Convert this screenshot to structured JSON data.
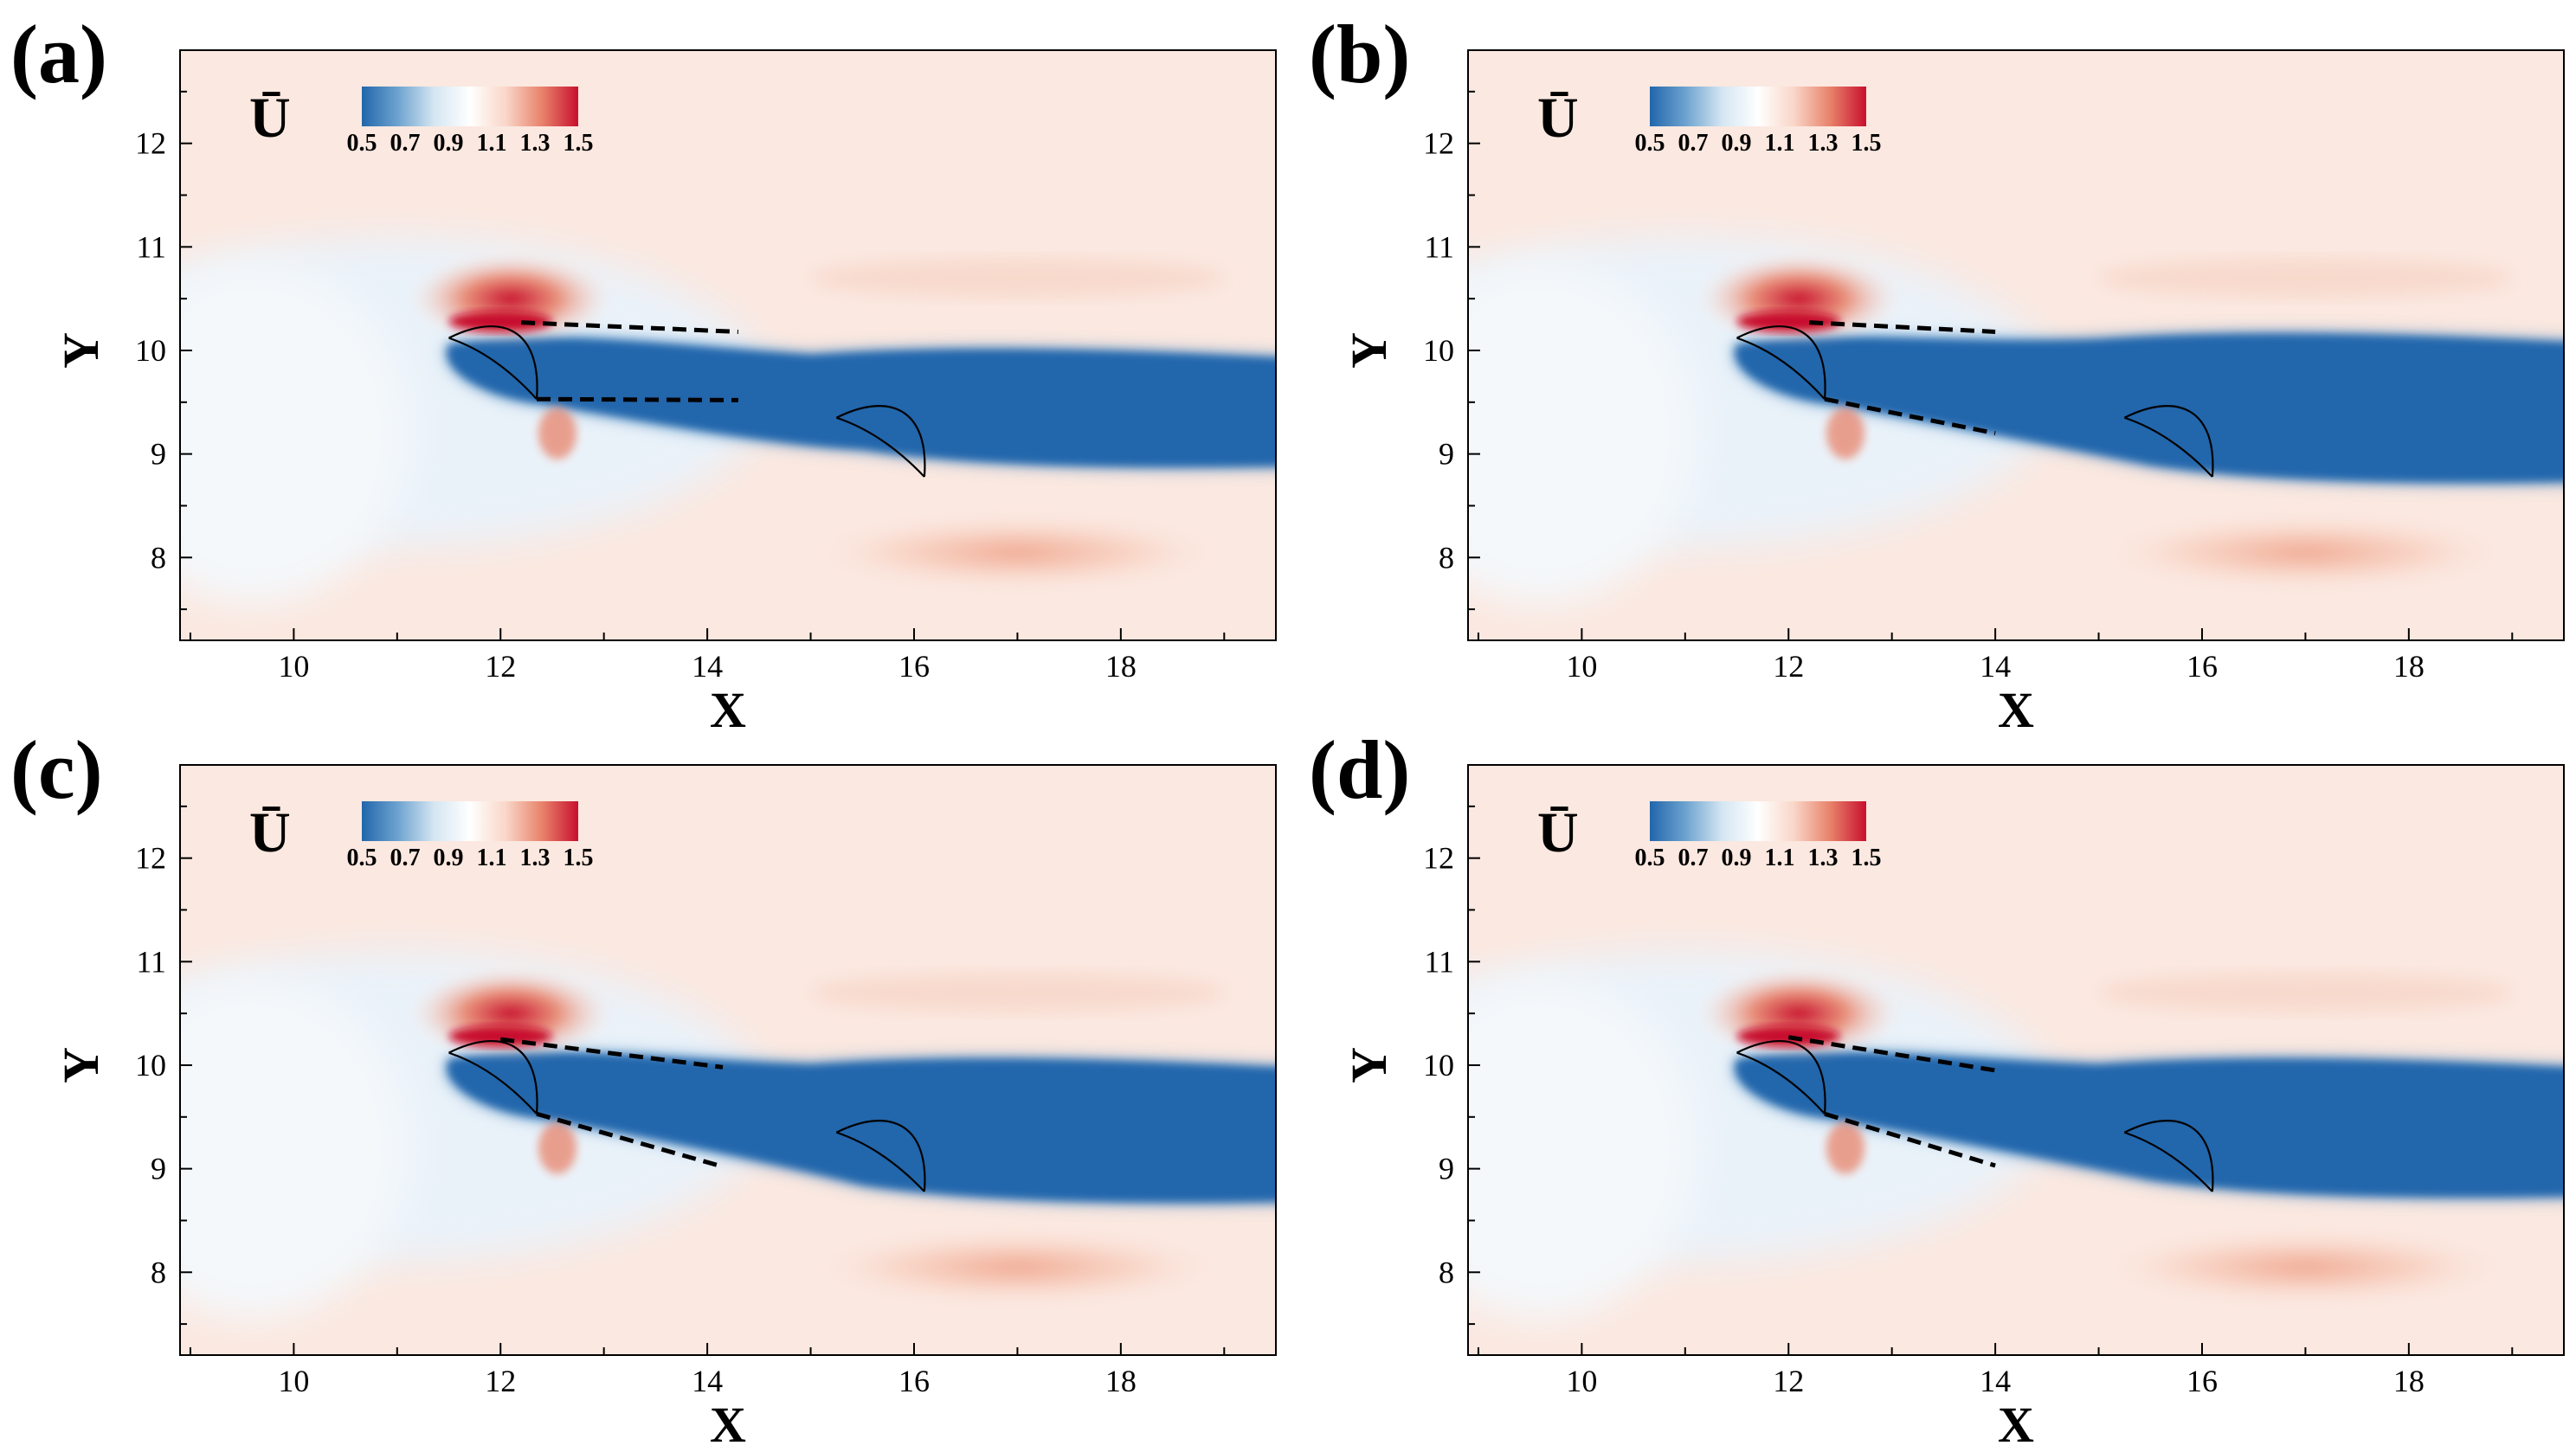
{
  "figure": {
    "description_free": true
  },
  "colorscale": {
    "stops": [
      "#2166ac",
      "#6ea3cf",
      "#d4e6f2",
      "#ffffff",
      "#f9d6c8",
      "#e8836b",
      "#c8102e"
    ],
    "background": "#fbe8e0",
    "wake_color": "#2166ac",
    "line_color": "#000000"
  },
  "chart_data": [
    {
      "type": "heatmap",
      "panel_label": "(a)",
      "title": "",
      "xlabel": "X",
      "ylabel": "Y",
      "xlim": [
        8.9,
        19.5
      ],
      "ylim": [
        7.2,
        12.9
      ],
      "xticks": [
        10,
        12,
        14,
        16,
        18
      ],
      "yticks": [
        8,
        9,
        10,
        11,
        12
      ],
      "colorbar": {
        "title": "Ū",
        "ticks": [
          "0.5",
          "0.7",
          "0.9",
          "1.1",
          "1.3",
          "1.5"
        ],
        "range": [
          0.5,
          1.5
        ]
      },
      "upstream_turbine": {
        "le": [
          11.5,
          10.12
        ],
        "te": [
          12.35,
          9.53
        ]
      },
      "downstream_turbine": {
        "le": [
          15.25,
          9.35
        ],
        "te": [
          16.1,
          8.78
        ]
      },
      "wake_boundaries": [
        {
          "x": [
            12.2,
            14.3
          ],
          "y": [
            10.27,
            10.18
          ]
        },
        {
          "x": [
            12.35,
            14.3
          ],
          "y": [
            9.53,
            9.52
          ]
        }
      ],
      "high_speed_region": {
        "x": 12.0,
        "y": 10.5,
        "value": 1.5
      },
      "wake_core": {
        "x_start": 12.0,
        "x_end": 19.5,
        "y_top": 9.95,
        "y_bottom": 8.9,
        "value": 0.5
      }
    },
    {
      "type": "heatmap",
      "panel_label": "(b)",
      "title": "",
      "xlabel": "X",
      "ylabel": "Y",
      "xlim": [
        8.9,
        19.5
      ],
      "ylim": [
        7.2,
        12.9
      ],
      "xticks": [
        10,
        12,
        14,
        16,
        18
      ],
      "yticks": [
        8,
        9,
        10,
        11,
        12
      ],
      "colorbar": {
        "title": "Ū",
        "ticks": [
          "0.5",
          "0.7",
          "0.9",
          "1.1",
          "1.3",
          "1.5"
        ],
        "range": [
          0.5,
          1.5
        ]
      },
      "upstream_turbine": {
        "le": [
          11.5,
          10.12
        ],
        "te": [
          12.35,
          9.53
        ]
      },
      "downstream_turbine": {
        "le": [
          15.25,
          9.35
        ],
        "te": [
          16.1,
          8.78
        ]
      },
      "wake_boundaries": [
        {
          "x": [
            12.2,
            14.0
          ],
          "y": [
            10.27,
            10.18
          ]
        },
        {
          "x": [
            12.35,
            14.0
          ],
          "y": [
            9.53,
            9.2
          ]
        }
      ],
      "high_speed_region": {
        "x": 12.0,
        "y": 10.5,
        "value": 1.5
      },
      "wake_core": {
        "x_start": 12.0,
        "x_end": 19.5,
        "y_top": 10.1,
        "y_bottom": 8.75,
        "value": 0.5
      }
    },
    {
      "type": "heatmap",
      "panel_label": "(c)",
      "title": "",
      "xlabel": "X",
      "ylabel": "Y",
      "xlim": [
        8.9,
        19.5
      ],
      "ylim": [
        7.2,
        12.9
      ],
      "xticks": [
        10,
        12,
        14,
        16,
        18
      ],
      "yticks": [
        8,
        9,
        10,
        11,
        12
      ],
      "colorbar": {
        "title": "Ū",
        "ticks": [
          "0.5",
          "0.7",
          "0.9",
          "1.1",
          "1.3",
          "1.5"
        ],
        "range": [
          0.5,
          1.5
        ]
      },
      "upstream_turbine": {
        "le": [
          11.5,
          10.12
        ],
        "te": [
          12.35,
          9.53
        ]
      },
      "downstream_turbine": {
        "le": [
          15.25,
          9.35
        ],
        "te": [
          16.1,
          8.78
        ]
      },
      "wake_boundaries": [
        {
          "x": [
            12.0,
            14.15
          ],
          "y": [
            10.25,
            9.98
          ]
        },
        {
          "x": [
            12.35,
            14.15
          ],
          "y": [
            9.53,
            9.02
          ]
        }
      ],
      "high_speed_region": {
        "x": 12.0,
        "y": 10.5,
        "value": 1.5
      },
      "wake_core": {
        "x_start": 12.0,
        "x_end": 19.5,
        "y_top": 10.0,
        "y_bottom": 8.7,
        "value": 0.5
      }
    },
    {
      "type": "heatmap",
      "panel_label": "(d)",
      "title": "",
      "xlabel": "X",
      "ylabel": "Y",
      "xlim": [
        8.9,
        19.5
      ],
      "ylim": [
        7.2,
        12.9
      ],
      "xticks": [
        10,
        12,
        14,
        16,
        18
      ],
      "yticks": [
        8,
        9,
        10,
        11,
        12
      ],
      "colorbar": {
        "title": "Ū",
        "ticks": [
          "0.5",
          "0.7",
          "0.9",
          "1.1",
          "1.3",
          "1.5"
        ],
        "range": [
          0.5,
          1.5
        ]
      },
      "upstream_turbine": {
        "le": [
          11.5,
          10.12
        ],
        "te": [
          12.35,
          9.53
        ]
      },
      "downstream_turbine": {
        "le": [
          15.25,
          9.35
        ],
        "te": [
          16.1,
          8.78
        ]
      },
      "wake_boundaries": [
        {
          "x": [
            12.0,
            14.0
          ],
          "y": [
            10.27,
            9.95
          ]
        },
        {
          "x": [
            12.35,
            14.0
          ],
          "y": [
            9.53,
            9.03
          ]
        }
      ],
      "high_speed_region": {
        "x": 12.0,
        "y": 10.5,
        "value": 1.5
      },
      "wake_core": {
        "x_start": 12.0,
        "x_end": 19.5,
        "y_top": 10.0,
        "y_bottom": 8.75,
        "value": 0.5
      }
    }
  ]
}
